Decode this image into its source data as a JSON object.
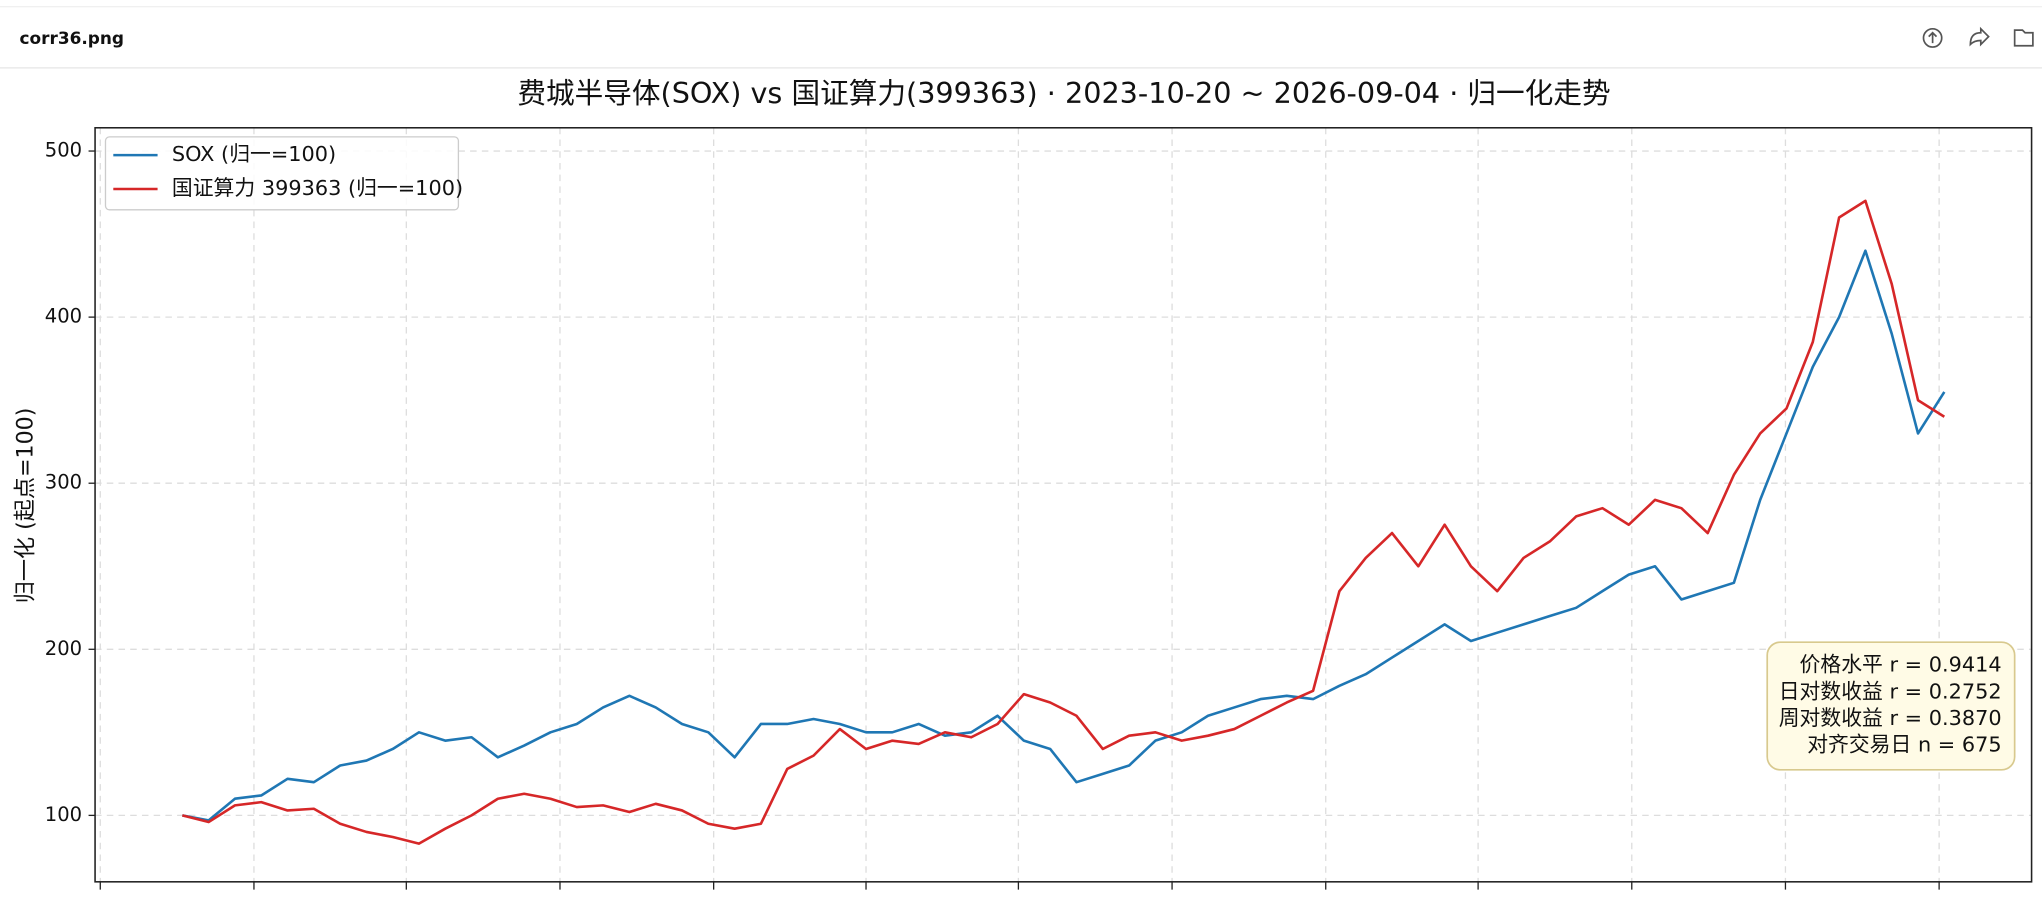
{
  "header": {
    "filename": "corr36.png"
  },
  "chart_data": {
    "type": "line",
    "title": "费城半导体(SOX) vs 国证算力(399363) · 2023-10-20 ~ 2026-09-04 · 归一化走势",
    "ylabel": "归一化 (起点=100)",
    "ylim": [
      60,
      514
    ],
    "yticks": [
      100,
      200,
      300,
      400,
      500
    ],
    "grid": true,
    "legend": "upper left",
    "series": [
      {
        "name": "SOX (归一=100)",
        "color": "#1f77b4",
        "values": [
          100,
          97,
          110,
          112,
          122,
          120,
          130,
          133,
          140,
          150,
          145,
          147,
          135,
          142,
          150,
          155,
          165,
          172,
          165,
          155,
          150,
          135,
          155,
          155,
          158,
          155,
          150,
          150,
          155,
          148,
          150,
          160,
          145,
          140,
          120,
          125,
          130,
          145,
          150,
          160,
          165,
          170,
          172,
          170,
          178,
          185,
          195,
          205,
          215,
          205,
          210,
          215,
          220,
          225,
          235,
          245,
          250,
          230,
          235,
          240,
          290,
          330,
          370,
          400,
          440,
          390,
          330,
          355
        ]
      },
      {
        "name": "国证算力 399363 (归一=100)",
        "color": "#d62728",
        "values": [
          100,
          96,
          106,
          108,
          103,
          104,
          95,
          90,
          87,
          83,
          92,
          100,
          110,
          113,
          110,
          105,
          106,
          102,
          107,
          103,
          95,
          92,
          95,
          128,
          136,
          152,
          140,
          145,
          143,
          150,
          147,
          155,
          173,
          168,
          160,
          140,
          148,
          150,
          145,
          148,
          152,
          160,
          168,
          175,
          235,
          255,
          270,
          250,
          275,
          250,
          235,
          255,
          265,
          280,
          285,
          275,
          290,
          285,
          270,
          305,
          330,
          345,
          385,
          460,
          470,
          420,
          350,
          340
        ]
      }
    ],
    "annotation": [
      "价格水平  r = 0.9414",
      "日对数收益 r = 0.2752",
      "周对数收益 r = 0.3870",
      "对齐交易日 n = 675"
    ]
  }
}
